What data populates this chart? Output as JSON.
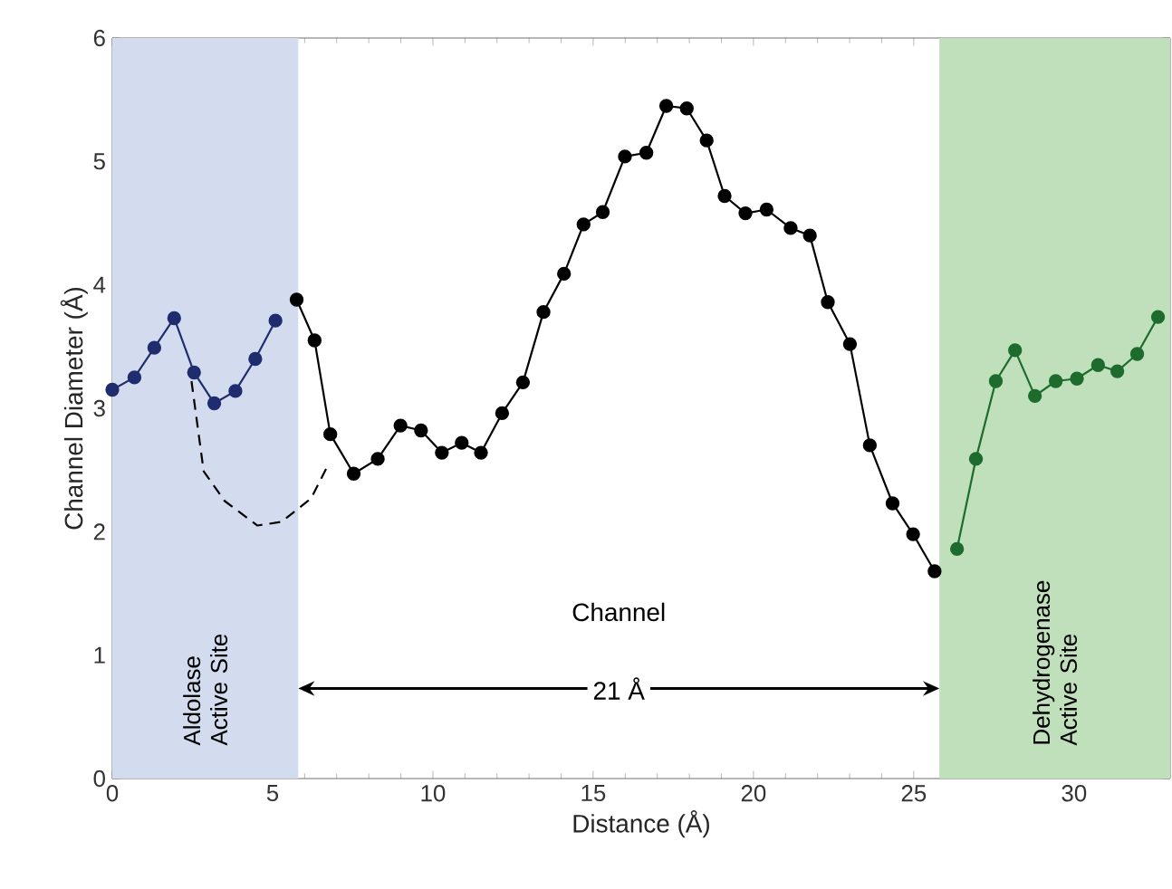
{
  "chart_data": {
    "type": "line",
    "xlabel": "Distance (Å)",
    "ylabel": "Channel Diameter (Å)",
    "xlim": [
      0,
      33
    ],
    "ylim": [
      0,
      6
    ],
    "xticks": [
      0,
      5,
      10,
      15,
      20,
      25,
      30
    ],
    "yticks": [
      0,
      1,
      2,
      3,
      4,
      5,
      6
    ],
    "grid": false,
    "marker": "circle",
    "series": [
      {
        "color": "#1f2d6e",
        "x": [
          0,
          0.69,
          1.31,
          1.93,
          2.55,
          3.18,
          3.84,
          4.46,
          5.09
        ],
        "values": [
          3.15,
          3.25,
          3.49,
          3.73,
          3.29,
          3.04,
          3.14,
          3.4,
          3.71
        ]
      },
      {
        "color": "#000000",
        "x": [
          5.75,
          6.31,
          6.8,
          7.53,
          8.28,
          8.99,
          9.63,
          10.28,
          10.9,
          11.5,
          12.16,
          12.81,
          13.45,
          14.09,
          14.7,
          15.3,
          15.99,
          16.66,
          17.28,
          17.92,
          18.54,
          19.1,
          19.75,
          20.41,
          21.16,
          21.76,
          22.32,
          23.01,
          23.63,
          24.34,
          24.98,
          25.65
        ],
        "values": [
          3.88,
          3.55,
          2.79,
          2.47,
          2.59,
          2.86,
          2.82,
          2.64,
          2.72,
          2.64,
          2.96,
          3.21,
          3.78,
          4.09,
          4.49,
          4.59,
          5.04,
          5.07,
          5.45,
          5.43,
          5.17,
          4.72,
          4.58,
          4.61,
          4.46,
          4.4,
          3.86,
          3.52,
          2.7,
          2.23,
          1.98,
          1.68
        ]
      },
      {
        "color": "#1e6b2e",
        "x": [
          26.35,
          26.94,
          27.56,
          28.16,
          28.78,
          29.43,
          30.09,
          30.75,
          31.35,
          31.97,
          32.62
        ],
        "values": [
          1.86,
          2.59,
          3.22,
          3.47,
          3.1,
          3.22,
          3.24,
          3.35,
          3.3,
          3.44,
          3.74
        ]
      },
      {
        "color": "#000000",
        "marker": "none",
        "line_style": "dashed",
        "x": [
          2.47,
          2.85,
          3.5,
          4.53,
          5.28,
          6.2,
          6.73
        ],
        "values": [
          3.22,
          2.49,
          2.25,
          2.05,
          2.08,
          2.27,
          2.54
        ]
      }
    ],
    "bands": [
      {
        "axis": "x",
        "from": 0,
        "to": 5.8,
        "label": "Aldolase Active Site",
        "color": "#d3dcef"
      },
      {
        "axis": "x",
        "from": 25.8,
        "to": 33,
        "label": "Dehydrogenase Active Site",
        "color": "#bfe0bb"
      }
    ],
    "annotations": [
      "Channel",
      "21 Å"
    ]
  }
}
